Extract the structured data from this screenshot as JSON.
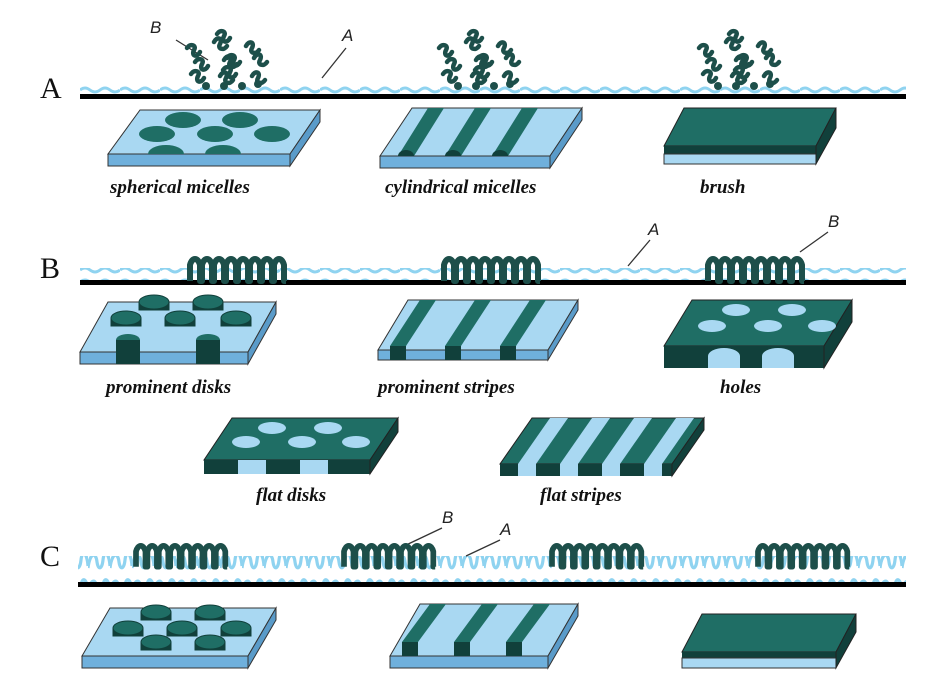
{
  "sections": [
    {
      "id": "A",
      "label": "A",
      "polymer_labels": [
        "B",
        "A"
      ],
      "morphologies": [
        "spherical micelles",
        "cylindrical micelles",
        "brush"
      ]
    },
    {
      "id": "B",
      "label": "B",
      "polymer_labels": [
        "A",
        "B"
      ],
      "morphologies": [
        "prominent disks",
        "prominent stripes",
        "holes",
        "flat disks",
        "flat stripes"
      ]
    },
    {
      "id": "C",
      "label": "C",
      "polymer_labels": [
        "B",
        "A"
      ],
      "morphologies": []
    }
  ],
  "colors": {
    "block_a": "#8fd3f0",
    "block_b": "#1d4f4a",
    "substrate_light": "#a9d8f2",
    "substrate_side": "#6fb0dc",
    "feature": "#1f6e65",
    "feature_dark": "#11403b",
    "line": "#000000"
  }
}
